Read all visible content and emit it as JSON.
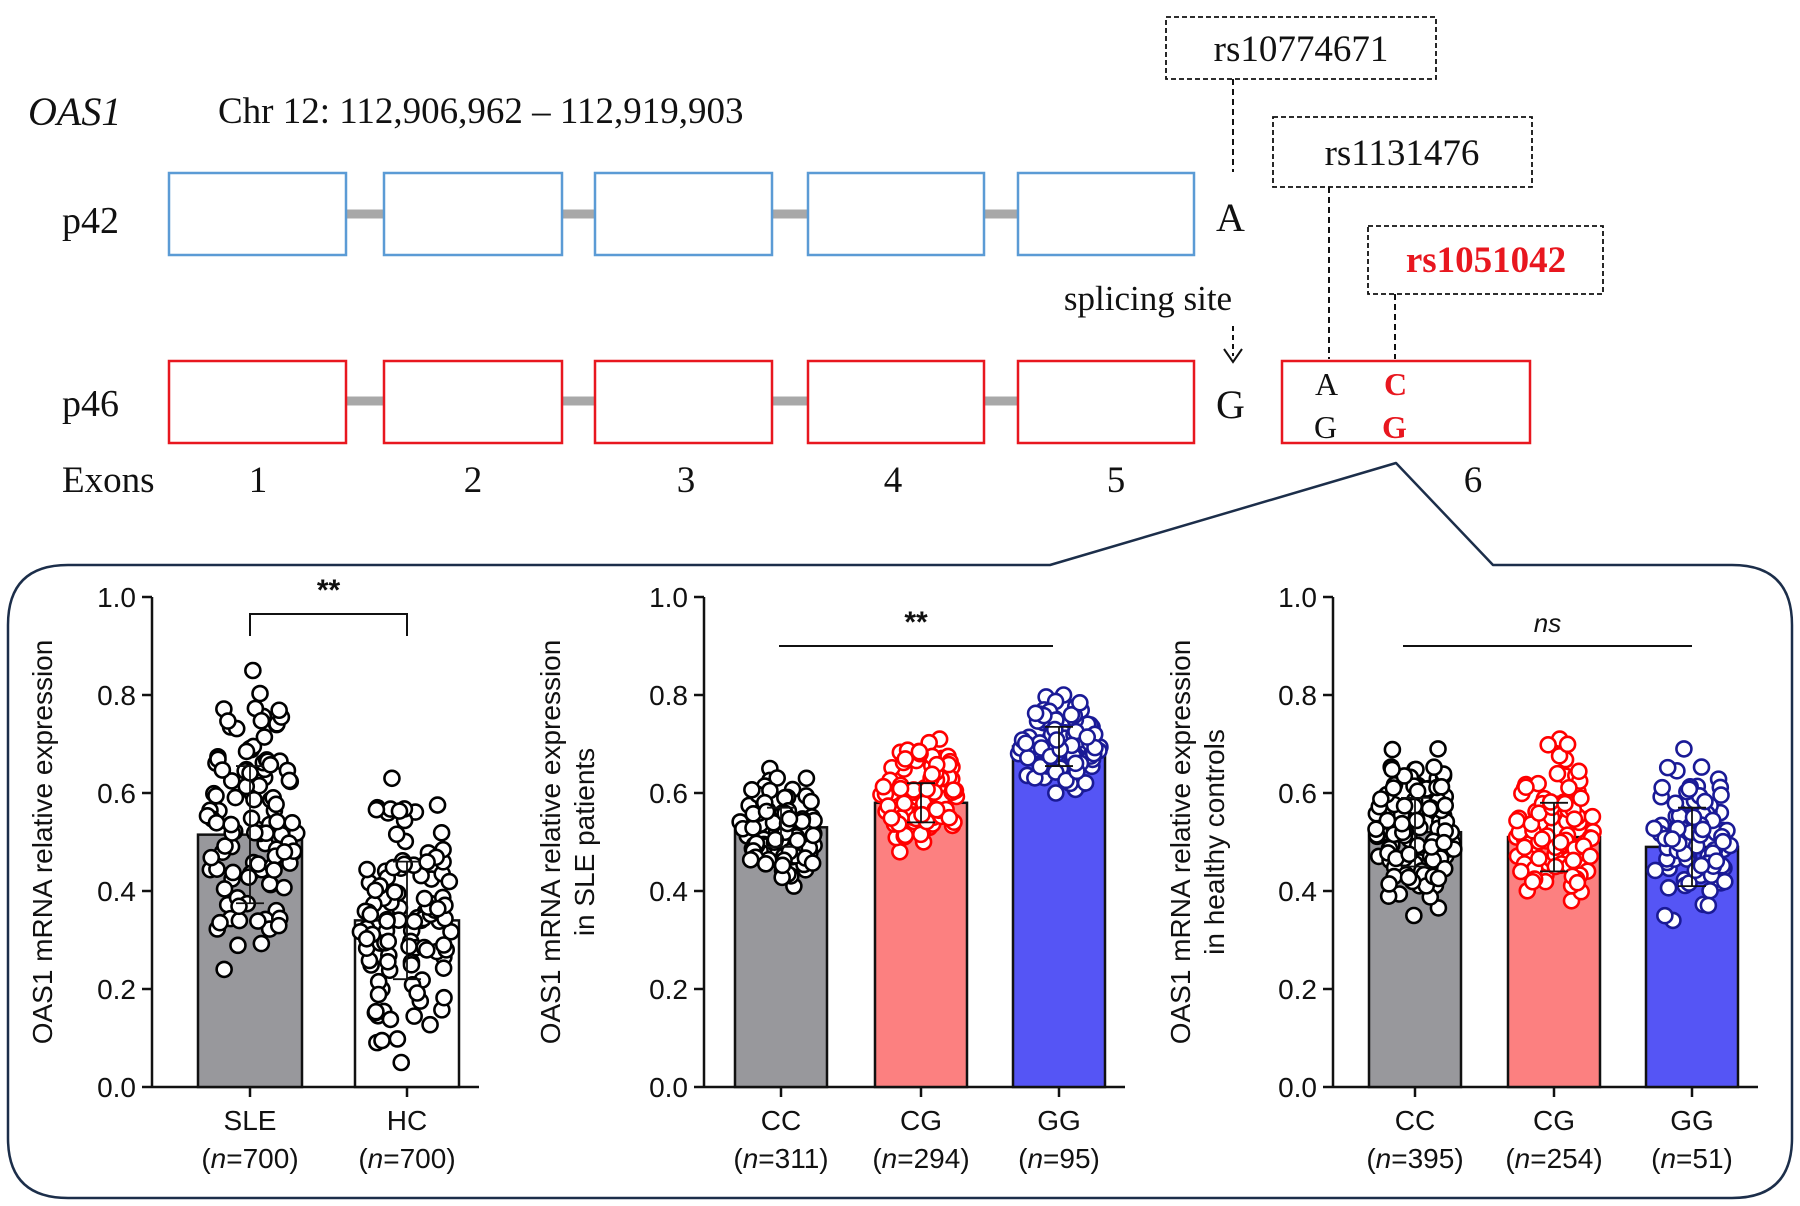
{
  "gene": {
    "name": "OAS1",
    "coordinates": "Chr 12: 112,906,962 – 112,919,903",
    "isoforms": [
      "p42",
      "p46"
    ],
    "exons_label": "Exons",
    "exon_numbers": [
      "1",
      "2",
      "3",
      "4",
      "5",
      "6"
    ],
    "p42_splice_allele": "A",
    "p46_splice_allele": "G",
    "splicing_label": "splicing site",
    "snps": {
      "snp_a": "rs10774671",
      "snp_b": "rs1131476",
      "snp_c": "rs1051042"
    },
    "exon6_alleles": {
      "col1_top": "A",
      "col1_bottom": "G",
      "col2_top": "C",
      "col2_bottom": "G"
    },
    "colors": {
      "p42": "#5b9bd5",
      "p46": "#e8171f",
      "highlight": "#e8171f",
      "panel_border": "#1c2e4a",
      "intron": "#a8a8a8"
    }
  },
  "chart_data": [
    {
      "type": "bar",
      "ylabel": [
        "OAS1 mRNA relative expression"
      ],
      "ylim": [
        0,
        1.0
      ],
      "yticks": [
        "0.0",
        "0.2",
        "0.4",
        "0.6",
        "0.8",
        "1.0"
      ],
      "categories": [
        "SLE",
        "HC"
      ],
      "n_labels": [
        "=700",
        "=700"
      ],
      "values": [
        0.515,
        0.34
      ],
      "error": [
        0.14,
        0.12
      ],
      "point_range": [
        [
          0.24,
          0.85
        ],
        [
          0.05,
          0.63
        ]
      ],
      "significance": "**",
      "bar_colors": [
        "#98989c",
        "#ffffff"
      ],
      "point_colors": [
        "#000000",
        "#000000"
      ]
    },
    {
      "type": "bar",
      "ylabel": [
        "OAS1 mRNA relative expression",
        "in SLE patients"
      ],
      "ylim": [
        0,
        1.0
      ],
      "yticks": [
        "0.0",
        "0.2",
        "0.4",
        "0.6",
        "0.8",
        "1.0"
      ],
      "categories": [
        "CC",
        "CG",
        "GG"
      ],
      "n_labels": [
        "=311",
        "=294",
        "=95"
      ],
      "values": [
        0.53,
        0.58,
        0.695
      ],
      "error": [
        0.04,
        0.04,
        0.04
      ],
      "point_range": [
        [
          0.41,
          0.65
        ],
        [
          0.48,
          0.71
        ],
        [
          0.6,
          0.8
        ]
      ],
      "significance": "**",
      "bar_colors": [
        "#98989c",
        "#fc8080",
        "#5555f5"
      ],
      "point_colors": [
        "#000000",
        "#ff0000",
        "#1a1a96"
      ]
    },
    {
      "type": "bar",
      "ylabel": [
        "OAS1 mRNA relative expression",
        "in healthy controls"
      ],
      "ylim": [
        0,
        1.0
      ],
      "yticks": [
        "0.0",
        "0.2",
        "0.4",
        "0.6",
        "0.8",
        "1.0"
      ],
      "categories": [
        "CC",
        "CG",
        "GG"
      ],
      "n_labels": [
        "=395",
        "=254",
        "=51"
      ],
      "values": [
        0.52,
        0.51,
        0.49
      ],
      "error": [
        0.07,
        0.07,
        0.08
      ],
      "point_range": [
        [
          0.35,
          0.69
        ],
        [
          0.38,
          0.71
        ],
        [
          0.34,
          0.69
        ]
      ],
      "significance": "ns",
      "bar_colors": [
        "#98989c",
        "#fc8080",
        "#5555f5"
      ],
      "point_colors": [
        "#000000",
        "#ff0000",
        "#1a1a96"
      ]
    }
  ]
}
